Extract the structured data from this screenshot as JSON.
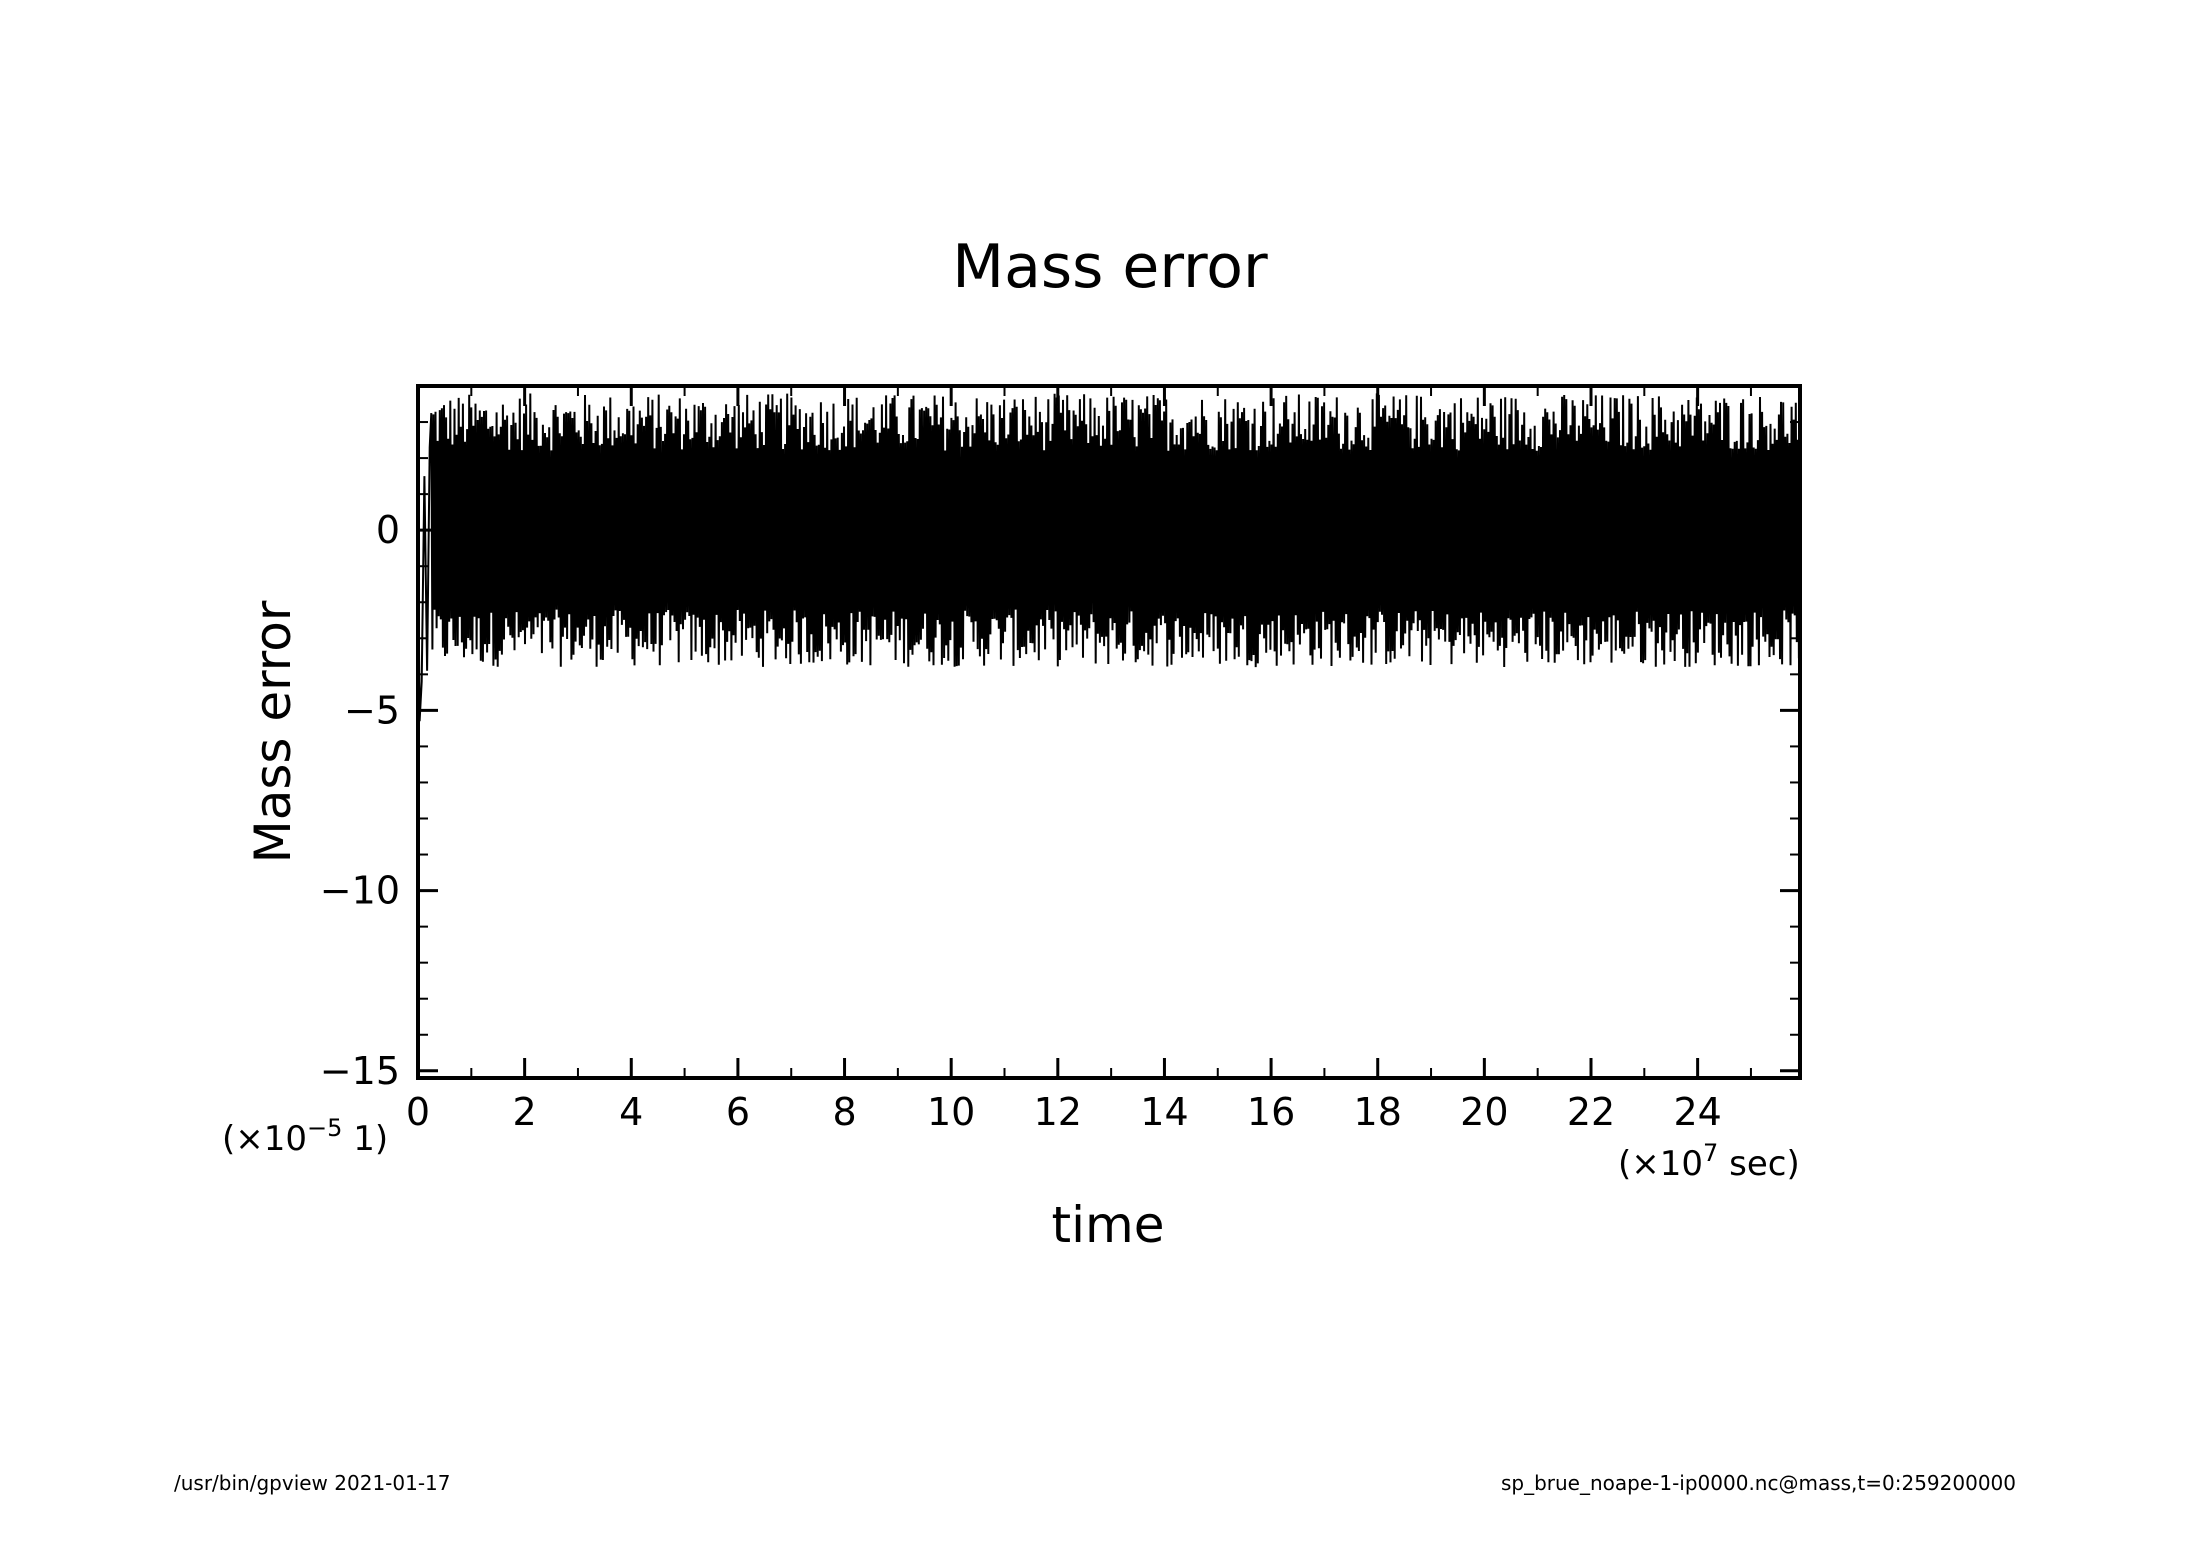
{
  "footer": {
    "left": "/usr/bin/gpview   2021-01-17",
    "right": "sp_brue_noape-1-ip0000.nc@mass,t=0:259200000"
  },
  "chart_data": {
    "type": "line",
    "title": "Mass error",
    "xlabel": "time",
    "ylabel": "Mass error",
    "x_scale_label": {
      "prefix": "(×10",
      "exp": "7",
      "suffix": " sec)"
    },
    "y_scale_label": {
      "prefix": "(×10",
      "exp": "−5",
      "suffix": " 1)"
    },
    "xlim": [
      0,
      25.92
    ],
    "ylim": [
      -15.2,
      4.0
    ],
    "x_ticks": [
      0,
      2,
      4,
      6,
      8,
      10,
      12,
      14,
      16,
      18,
      20,
      22,
      24
    ],
    "x_tick_labels": [
      "0",
      "2",
      "4",
      "6",
      "8",
      "10",
      "12",
      "14",
      "16",
      "18",
      "20",
      "22",
      "24"
    ],
    "y_ticks": [
      -15,
      -10,
      -5,
      0
    ],
    "y_tick_labels": [
      "−15",
      "−10",
      "−5",
      "0"
    ],
    "grid": false,
    "series": [
      {
        "color": "#000000",
        "description_values": {
          "initial_value": 0,
          "initial_minimum": -5.3,
          "oscillation_upper_range": [
            2.2,
            3.8
          ],
          "oscillation_lower_range": [
            -3.8,
            -2.2
          ],
          "x_start": 0,
          "x_end": 25.92
        }
      }
    ]
  }
}
